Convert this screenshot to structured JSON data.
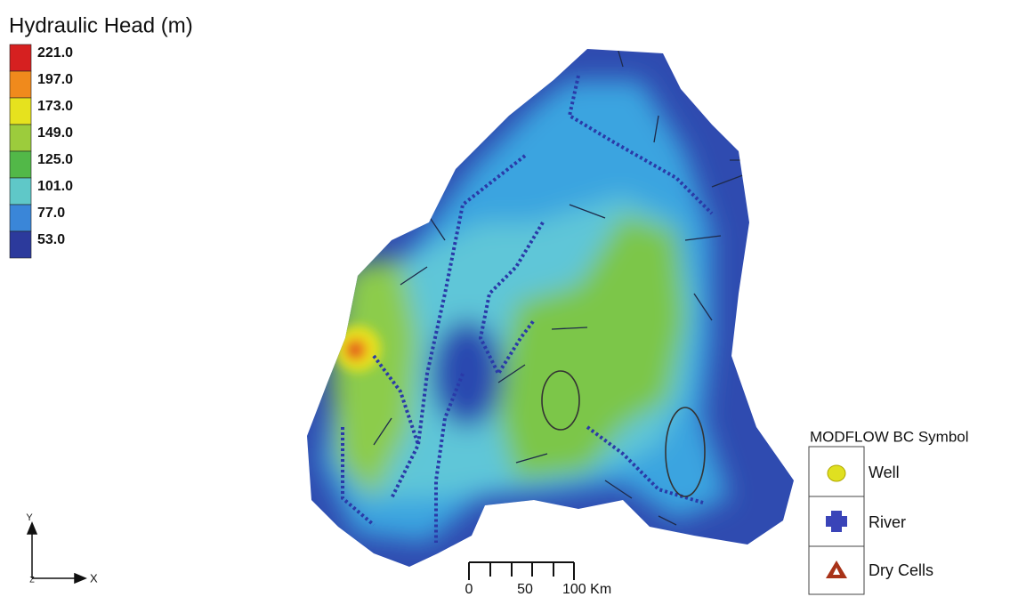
{
  "colorbar": {
    "title": "Hydraulic Head (m)",
    "entries": [
      {
        "label": "221.0",
        "color": "#d62020"
      },
      {
        "label": "197.0",
        "color": "#f08a1c"
      },
      {
        "label": "173.0",
        "color": "#e6e21e"
      },
      {
        "label": "149.0",
        "color": "#9ccc3c"
      },
      {
        "label": "125.0",
        "color": "#52b848"
      },
      {
        "label": "101.0",
        "color": "#5fc8c8"
      },
      {
        "label": "77.0",
        "color": "#3a86d8"
      },
      {
        "label": "53.0",
        "color": "#2c3a9c"
      }
    ]
  },
  "bc_legend": {
    "title": "MODFLOW BC Symbol",
    "items": [
      "Well",
      "River",
      "Dry Cells"
    ]
  },
  "scale_bar": {
    "labels": [
      "0",
      "50",
      "100 Km"
    ]
  },
  "axes": {
    "y": "Y",
    "x": "X",
    "z": "Z"
  }
}
